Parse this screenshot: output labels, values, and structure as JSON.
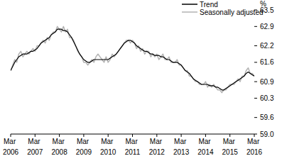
{
  "chart_data": {
    "type": "line",
    "ylabel": "%",
    "legend": "top-right",
    "categories": [
      "Mar 2006",
      null,
      null,
      null,
      null,
      null,
      null,
      null,
      null,
      null,
      null,
      null,
      "Mar 2007",
      null,
      null,
      null,
      null,
      null,
      null,
      null,
      null,
      null,
      null,
      null,
      "Mar 2008",
      null,
      null,
      null,
      null,
      null,
      null,
      null,
      null,
      null,
      null,
      null,
      "Mar 2009",
      null,
      null,
      null,
      null,
      null,
      null,
      null,
      null,
      null,
      null,
      null,
      "Mar 2010",
      null,
      null,
      null,
      null,
      null,
      null,
      null,
      null,
      null,
      null,
      null,
      "Mar 2011",
      null,
      null,
      null,
      null,
      null,
      null,
      null,
      null,
      null,
      null,
      null,
      "Mar 2012",
      null,
      null,
      null,
      null,
      null,
      null,
      null,
      null,
      null,
      null,
      null,
      "Mar 2013",
      null,
      null,
      null,
      null,
      null,
      null,
      null,
      null,
      null,
      null,
      null,
      "Mar 2014",
      null,
      null,
      null,
      null,
      null,
      null,
      null,
      null,
      null,
      null,
      null,
      "Mar 2015",
      null,
      null,
      null,
      null,
      null,
      null,
      null,
      null,
      null,
      null,
      null,
      "Mar 2016"
    ],
    "ylim": [
      59,
      63.5
    ],
    "yticks": [
      {
        "value": 59,
        "label": "59.0"
      },
      59.6,
      60.3,
      60.9,
      61.6,
      62.2,
      62.9,
      63.5
    ],
    "series": [
      {
        "name": "Trend",
        "color": "#000000",
        "values": [
          61.3,
          61.45,
          61.6,
          61.7,
          61.8,
          61.85,
          61.9,
          61.9,
          61.9,
          61.95,
          62.0,
          62.0,
          62.05,
          62.1,
          62.2,
          62.3,
          62.35,
          62.4,
          62.45,
          62.5,
          62.6,
          62.65,
          62.7,
          62.8,
          62.8,
          62.8,
          62.75,
          62.75,
          62.7,
          62.6,
          62.5,
          62.35,
          62.2,
          62.05,
          61.9,
          61.8,
          61.7,
          61.65,
          61.6,
          61.6,
          61.65,
          61.7,
          61.7,
          61.7,
          61.7,
          61.7,
          61.7,
          61.7,
          61.7,
          61.75,
          61.8,
          61.85,
          61.9,
          62.0,
          62.1,
          62.2,
          62.3,
          62.35,
          62.4,
          62.4,
          62.35,
          62.3,
          62.2,
          62.15,
          62.1,
          62.05,
          62.0,
          62.0,
          61.95,
          61.9,
          61.9,
          61.85,
          61.85,
          61.85,
          61.8,
          61.8,
          61.75,
          61.7,
          61.7,
          61.65,
          61.6,
          61.6,
          61.6,
          61.55,
          61.5,
          61.4,
          61.3,
          61.25,
          61.2,
          61.1,
          61.0,
          60.95,
          60.9,
          60.85,
          60.8,
          60.8,
          60.8,
          60.8,
          60.75,
          60.75,
          60.75,
          60.7,
          60.7,
          60.65,
          60.6,
          60.6,
          60.65,
          60.7,
          60.75,
          60.8,
          60.85,
          60.9,
          60.95,
          61.0,
          61.05,
          61.1,
          61.2,
          61.25,
          61.2,
          61.15,
          61.1
        ]
      },
      {
        "name": "Seasonally adjusted",
        "color": "#b3b3b3",
        "values": [
          61.3,
          61.5,
          61.7,
          61.6,
          61.9,
          62.0,
          61.8,
          61.9,
          62.0,
          61.9,
          62.0,
          62.1,
          62.0,
          62.2,
          62.2,
          62.3,
          62.4,
          62.3,
          62.5,
          62.4,
          62.6,
          62.7,
          62.7,
          62.9,
          62.8,
          62.7,
          62.9,
          62.7,
          62.8,
          62.5,
          62.5,
          62.4,
          62.2,
          62.0,
          61.9,
          61.8,
          61.6,
          61.6,
          61.5,
          61.6,
          61.7,
          61.6,
          61.8,
          61.9,
          61.8,
          61.7,
          61.6,
          61.8,
          61.6,
          61.7,
          61.9,
          61.8,
          61.9,
          62.0,
          62.1,
          62.2,
          62.3,
          62.4,
          62.4,
          62.3,
          62.4,
          62.3,
          62.1,
          62.2,
          62.0,
          62.1,
          61.9,
          62.0,
          62.0,
          61.8,
          61.9,
          61.8,
          61.9,
          61.7,
          61.8,
          61.9,
          61.7,
          61.7,
          61.8,
          61.6,
          61.6,
          61.6,
          61.7,
          61.5,
          61.5,
          61.4,
          61.3,
          61.3,
          61.1,
          61.1,
          61.0,
          60.9,
          60.9,
          60.8,
          60.8,
          60.8,
          60.9,
          60.7,
          60.8,
          60.7,
          60.8,
          60.7,
          60.6,
          60.6,
          60.5,
          60.6,
          60.6,
          60.7,
          60.8,
          60.8,
          60.8,
          60.9,
          61.0,
          60.9,
          61.1,
          61.1,
          61.3,
          61.4,
          61.2,
          61.2,
          61.1
        ]
      }
    ]
  }
}
